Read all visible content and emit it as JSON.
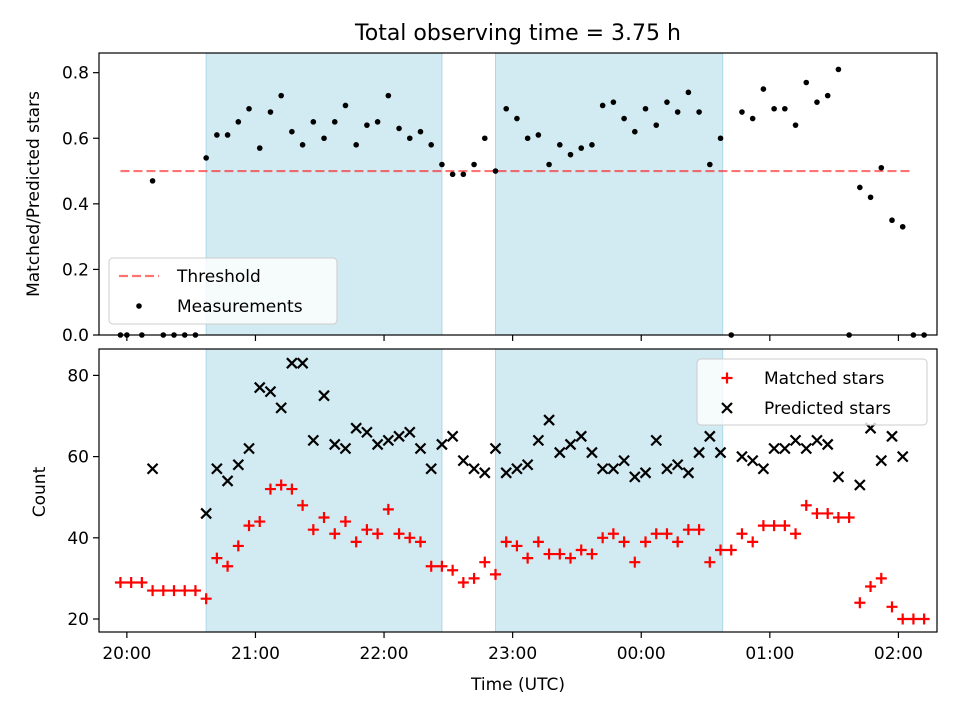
{
  "title": "Total observing time = 3.75 h",
  "colors": {
    "shade": "#add8e6",
    "threshold": "#ff0000",
    "measurements": "#000000",
    "matched": "#ff0000",
    "predicted": "#000000"
  },
  "chart_data": [
    {
      "type": "scatter",
      "ylabel": "Matched/Predicted stars",
      "ylim": [
        0,
        0.86
      ],
      "yticks": [
        0.0,
        0.2,
        0.4,
        0.6,
        0.8
      ],
      "ytick_labels": [
        "0.0",
        "0.2",
        "0.4",
        "0.6",
        "0.8"
      ],
      "xlim": [
        "19:47",
        "02:18"
      ],
      "x_unit": "time (UTC)",
      "shaded_intervals": [
        [
          "20:37",
          "22:27"
        ],
        [
          "22:52",
          "00:38"
        ]
      ],
      "threshold": {
        "name": "Threshold",
        "value": 0.5,
        "x_range": [
          "19:57",
          "02:07"
        ]
      },
      "legend": {
        "placement": "lower-left",
        "entries": [
          "Threshold",
          "Measurements"
        ]
      },
      "series": [
        {
          "name": "Measurements",
          "x": [
            "19:57",
            "20:00",
            "20:07",
            "20:12",
            "20:17",
            "20:22",
            "20:27",
            "20:32",
            "20:37",
            "20:42",
            "20:47",
            "20:52",
            "20:57",
            "21:02",
            "21:07",
            "21:12",
            "21:17",
            "21:22",
            "21:27",
            "21:32",
            "21:37",
            "21:42",
            "21:47",
            "21:52",
            "21:57",
            "22:02",
            "22:07",
            "22:12",
            "22:17",
            "22:22",
            "22:27",
            "22:32",
            "22:37",
            "22:42",
            "22:47",
            "22:52",
            "22:57",
            "23:02",
            "23:07",
            "23:12",
            "23:17",
            "23:22",
            "23:27",
            "23:32",
            "23:37",
            "23:42",
            "23:47",
            "23:52",
            "23:57",
            "00:02",
            "00:07",
            "00:12",
            "00:17",
            "00:22",
            "00:27",
            "00:32",
            "00:37",
            "00:42",
            "00:47",
            "00:52",
            "00:57",
            "01:02",
            "01:07",
            "01:12",
            "01:17",
            "01:22",
            "01:27",
            "01:32",
            "01:37",
            "01:42",
            "01:47",
            "01:52",
            "01:57",
            "02:02",
            "02:07",
            "02:12"
          ],
          "y": [
            0.0,
            0.0,
            0.0,
            0.47,
            0.0,
            0.0,
            0.0,
            0.0,
            0.54,
            0.61,
            0.61,
            0.65,
            0.69,
            0.57,
            0.68,
            0.73,
            0.62,
            0.58,
            0.65,
            0.6,
            0.65,
            0.7,
            0.58,
            0.64,
            0.65,
            0.73,
            0.63,
            0.6,
            0.62,
            0.58,
            0.52,
            0.49,
            0.49,
            0.52,
            0.6,
            0.5,
            0.69,
            0.66,
            0.6,
            0.61,
            0.52,
            0.58,
            0.55,
            0.57,
            0.58,
            0.7,
            0.71,
            0.66,
            0.62,
            0.69,
            0.64,
            0.71,
            0.68,
            0.74,
            0.68,
            0.52,
            0.6,
            0.0,
            0.68,
            0.66,
            0.75,
            0.69,
            0.69,
            0.64,
            0.77,
            0.71,
            0.73,
            0.81,
            0.0,
            0.45,
            0.42,
            0.51,
            0.35,
            0.33,
            0.0,
            0.0
          ]
        }
      ]
    },
    {
      "type": "scatter",
      "xlabel": "Time (UTC)",
      "ylabel": "Count",
      "ylim": [
        16.8,
        86.5
      ],
      "yticks": [
        20,
        40,
        60,
        80
      ],
      "ytick_labels": [
        "20",
        "40",
        "60",
        "80"
      ],
      "xticks": [
        "20:00",
        "21:00",
        "22:00",
        "23:00",
        "00:00",
        "01:00",
        "02:00"
      ],
      "xlim": [
        "19:47",
        "02:18"
      ],
      "shaded_intervals": [
        [
          "20:37",
          "22:27"
        ],
        [
          "22:52",
          "00:38"
        ]
      ],
      "legend": {
        "placement": "top-right",
        "entries": [
          "Matched stars",
          "Predicted stars"
        ]
      },
      "series": [
        {
          "name": "Matched stars",
          "marker": "plus",
          "x": [
            "19:57",
            "20:02",
            "20:07",
            "20:12",
            "20:17",
            "20:22",
            "20:27",
            "20:32",
            "20:37",
            "20:42",
            "20:47",
            "20:52",
            "20:57",
            "21:02",
            "21:07",
            "21:12",
            "21:17",
            "21:22",
            "21:27",
            "21:32",
            "21:37",
            "21:42",
            "21:47",
            "21:52",
            "21:57",
            "22:02",
            "22:07",
            "22:12",
            "22:17",
            "22:22",
            "22:27",
            "22:32",
            "22:37",
            "22:42",
            "22:47",
            "22:52",
            "22:57",
            "23:02",
            "23:07",
            "23:12",
            "23:17",
            "23:22",
            "23:27",
            "23:32",
            "23:37",
            "23:42",
            "23:47",
            "23:52",
            "23:57",
            "00:02",
            "00:07",
            "00:12",
            "00:17",
            "00:22",
            "00:27",
            "00:32",
            "00:37",
            "00:42",
            "00:47",
            "00:52",
            "00:57",
            "01:02",
            "01:07",
            "01:12",
            "01:17",
            "01:22",
            "01:27",
            "01:32",
            "01:37",
            "01:42",
            "01:47",
            "01:52",
            "01:57",
            "02:02",
            "02:07",
            "02:12"
          ],
          "y": [
            29,
            29,
            29,
            27,
            27,
            27,
            27,
            27,
            25,
            35,
            33,
            38,
            43,
            44,
            52,
            53,
            52,
            48,
            42,
            45,
            41,
            44,
            39,
            42,
            41,
            47,
            41,
            40,
            39,
            33,
            33,
            32,
            29,
            30,
            34,
            31,
            39,
            38,
            35,
            39,
            36,
            36,
            35,
            37,
            36,
            40,
            41,
            39,
            34,
            39,
            41,
            41,
            39,
            42,
            42,
            34,
            37,
            37,
            41,
            39,
            43,
            43,
            43,
            41,
            48,
            46,
            46,
            45,
            45,
            24,
            28,
            30,
            23,
            20,
            20,
            20
          ]
        },
        {
          "name": "Predicted stars",
          "marker": "x",
          "x": [
            "20:12",
            "20:37",
            "20:42",
            "20:47",
            "20:52",
            "20:57",
            "21:02",
            "21:07",
            "21:12",
            "21:17",
            "21:22",
            "21:27",
            "21:32",
            "21:37",
            "21:42",
            "21:47",
            "21:52",
            "21:57",
            "22:02",
            "22:07",
            "22:12",
            "22:17",
            "22:22",
            "22:27",
            "22:32",
            "22:37",
            "22:42",
            "22:47",
            "22:52",
            "22:57",
            "23:02",
            "23:07",
            "23:12",
            "23:17",
            "23:22",
            "23:27",
            "23:32",
            "23:37",
            "23:42",
            "23:47",
            "23:52",
            "23:57",
            "00:02",
            "00:07",
            "00:12",
            "00:17",
            "00:22",
            "00:27",
            "00:32",
            "00:37",
            "00:47",
            "00:52",
            "00:57",
            "01:02",
            "01:07",
            "01:12",
            "01:17",
            "01:22",
            "01:27",
            "01:32",
            "01:42",
            "01:47",
            "01:52",
            "01:57",
            "02:02"
          ],
          "y": [
            57,
            46,
            57,
            54,
            58,
            62,
            77,
            76,
            72,
            83,
            83,
            64,
            75,
            63,
            62,
            67,
            66,
            63,
            64,
            65,
            66,
            62,
            57,
            63,
            65,
            59,
            57,
            56,
            62,
            56,
            57,
            58,
            64,
            69,
            61,
            63,
            65,
            61,
            57,
            57,
            59,
            55,
            56,
            64,
            57,
            58,
            56,
            61,
            65,
            61,
            60,
            59,
            57,
            62,
            62,
            64,
            62,
            64,
            63,
            55,
            53,
            67,
            59,
            65,
            60
          ]
        }
      ]
    }
  ]
}
